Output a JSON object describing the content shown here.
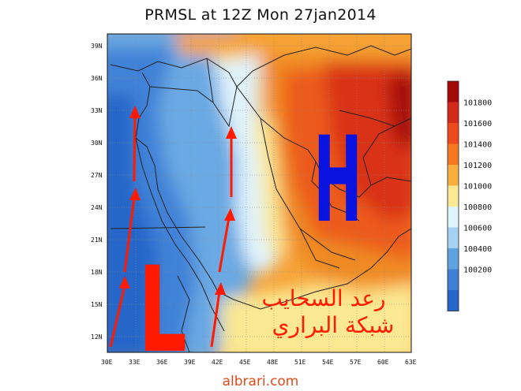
{
  "title": "PRMSL at 12Z Mon 27jan2014",
  "map": {
    "lat_ticks": [
      "39N",
      "36N",
      "33N",
      "30N",
      "27N",
      "24N",
      "21N",
      "18N",
      "15N",
      "12N"
    ],
    "lon_ticks": [
      "30E",
      "33E",
      "36E",
      "39E",
      "42E",
      "45E",
      "48E",
      "51E",
      "54E",
      "57E",
      "60E",
      "63E"
    ],
    "high_label": "H",
    "low_label": "L",
    "arrows_icon": "red-wind-arrow-icon"
  },
  "colorbar": {
    "labels": [
      "101800",
      "101600",
      "101400",
      "101200",
      "101000",
      "100800",
      "100600",
      "100400",
      "100200"
    ],
    "colors": [
      "#a50a0a",
      "#d42a1a",
      "#ee4a1e",
      "#f5781e",
      "#f9ae3e",
      "#fbe892",
      "#dff4fb",
      "#a5d2f0",
      "#5ea2e0",
      "#3f7fd6",
      "#2566c9"
    ]
  },
  "watermark": {
    "line1": "رعد السحايب",
    "line2": "شبكة البراري"
  },
  "footer": "albrari.com"
}
